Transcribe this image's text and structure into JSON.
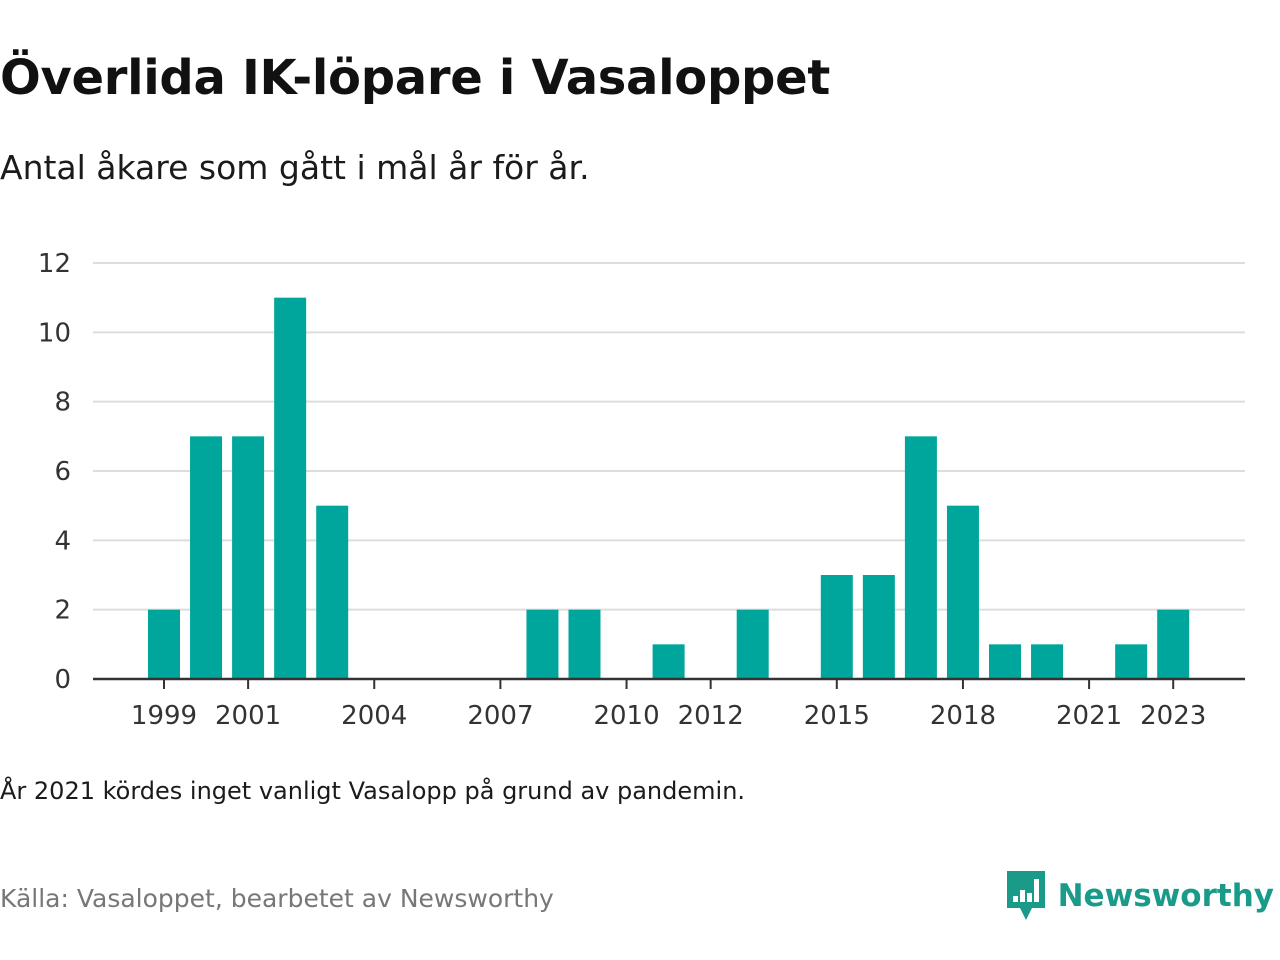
{
  "title": "Överlida IK-löpare i Vasaloppet",
  "subtitle": "Antal åkare som gått i mål år för år.",
  "note": "År 2021 kördes inget vanligt Vasalopp på grund av pandemin.",
  "source": "Källa: Vasaloppet, bearbetet av Newsworthy",
  "brand": {
    "name": "Newsworthy",
    "icon": "newsworthy-logo-icon",
    "color": "#1a9b8a"
  },
  "colors": {
    "bar": "#00a69b",
    "grid": "#dddddd",
    "axis": "#333333"
  },
  "chart_data": {
    "type": "bar",
    "title": "Överlida IK-löpare i Vasaloppet",
    "subtitle": "Antal åkare som gått i mål år för år.",
    "xlabel": "",
    "ylabel": "",
    "x": [
      1999,
      2000,
      2001,
      2002,
      2003,
      2004,
      2005,
      2006,
      2007,
      2008,
      2009,
      2010,
      2011,
      2012,
      2013,
      2014,
      2015,
      2016,
      2017,
      2018,
      2019,
      2020,
      2021,
      2022,
      2023
    ],
    "values": [
      2,
      7,
      7,
      11,
      5,
      0,
      0,
      0,
      0,
      2,
      2,
      0,
      1,
      0,
      2,
      0,
      3,
      3,
      7,
      5,
      1,
      1,
      0,
      1,
      2
    ],
    "xticks": [
      "1999",
      "2001",
      "2004",
      "2007",
      "2010",
      "2012",
      "2015",
      "2018",
      "2021",
      "2023"
    ],
    "yticks": [
      "0",
      "2",
      "4",
      "6",
      "8",
      "10",
      "12"
    ],
    "ylim": [
      0,
      12
    ],
    "grid": true,
    "legend": "none"
  }
}
